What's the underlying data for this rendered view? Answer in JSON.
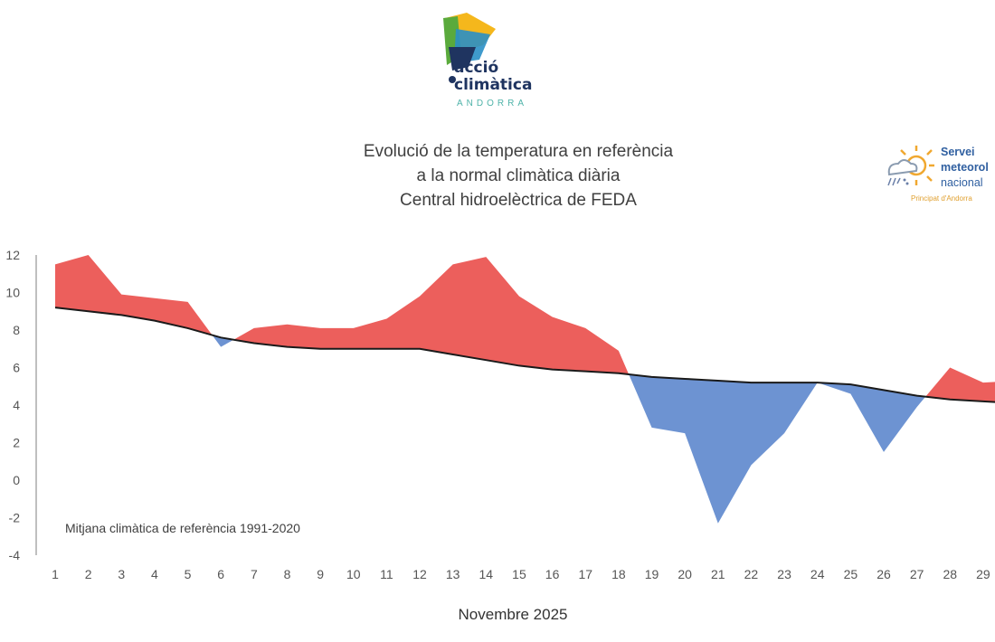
{
  "logo_left": {
    "line1": "acció",
    "line2": "climàtica",
    "line3": "ANDORRA"
  },
  "logo_right": {
    "line1": "Servei",
    "line2": "meteorol",
    "line3": "nacional",
    "line4": "Principat d'Andorra"
  },
  "chart_data": {
    "type": "area",
    "title": [
      "Evolució de la temperatura en referència",
      "a la normal climàtica diària",
      "Central hidroelèctrica de FEDA"
    ],
    "xlabel": "Novembre 2025",
    "annotation": "Mitjana climàtica de referència 1991-2020",
    "x": [
      1,
      2,
      3,
      4,
      5,
      6,
      7,
      8,
      9,
      10,
      11,
      12,
      13,
      14,
      15,
      16,
      17,
      18,
      19,
      20,
      21,
      22,
      23,
      24,
      25,
      26,
      27,
      28,
      29,
      30
    ],
    "x_tick_labels": [
      "1",
      "2",
      "3",
      "4",
      "5",
      "6",
      "7",
      "8",
      "9",
      "10",
      "11",
      "12",
      "13",
      "14",
      "15",
      "16",
      "17",
      "18",
      "19",
      "20",
      "21",
      "22",
      "23",
      "24",
      "25",
      "26",
      "27",
      "28",
      "29"
    ],
    "ylim": [
      -4,
      12
    ],
    "y_ticks": [
      12,
      10,
      8,
      6,
      4,
      2,
      0,
      -2,
      -4
    ],
    "grid": false,
    "series": [
      {
        "role": "observed",
        "values": [
          11.5,
          12.0,
          9.9,
          9.7,
          9.5,
          7.1,
          8.1,
          8.3,
          8.1,
          8.1,
          8.6,
          9.8,
          11.5,
          11.9,
          9.8,
          8.7,
          8.1,
          6.9,
          2.8,
          2.5,
          -2.3,
          0.8,
          2.5,
          5.2,
          4.6,
          1.5,
          3.9,
          6.0,
          5.2,
          5.3
        ]
      },
      {
        "role": "normal",
        "values": [
          9.2,
          9.0,
          8.8,
          8.5,
          8.1,
          7.6,
          7.3,
          7.1,
          7.0,
          7.0,
          7.0,
          7.0,
          6.7,
          6.4,
          6.1,
          5.9,
          5.8,
          5.7,
          5.5,
          5.4,
          5.3,
          5.2,
          5.2,
          5.2,
          5.1,
          4.8,
          4.5,
          4.3,
          4.2,
          4.1
        ]
      }
    ],
    "colors": {
      "above": "#ec5f5c",
      "below": "#6d93d2",
      "normal_line": "#1a1a1a",
      "axis": "#bfbfbf"
    }
  }
}
